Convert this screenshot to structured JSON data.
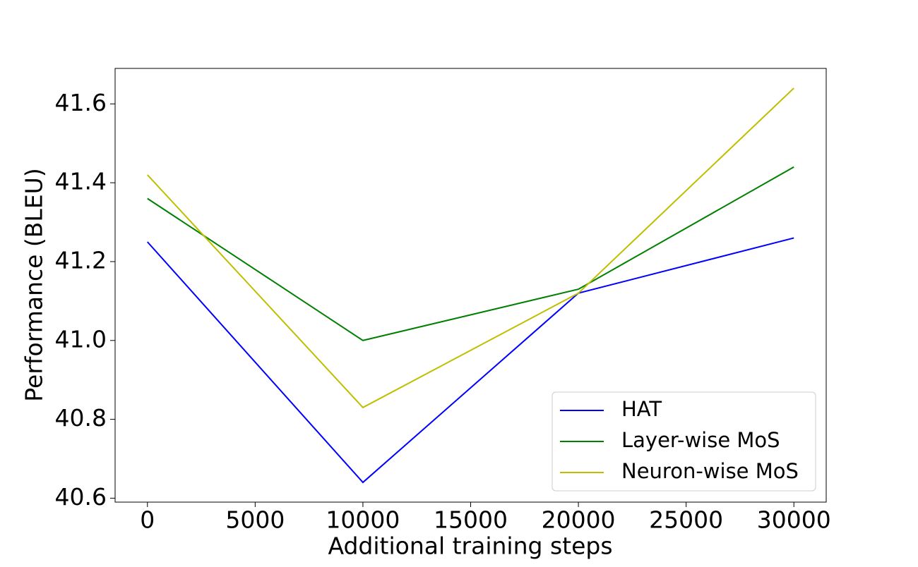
{
  "chart_data": {
    "type": "line",
    "x_label": "Additional training steps",
    "y_label": "Performance (BLEU)",
    "x": [
      0,
      10000,
      20000,
      30000
    ],
    "series": [
      {
        "name": "HAT",
        "color": "#0000ff",
        "values": [
          41.25,
          40.64,
          41.12,
          41.26
        ]
      },
      {
        "name": "Layer-wise MoS",
        "color": "#008000",
        "values": [
          41.36,
          41.0,
          41.13,
          41.44
        ]
      },
      {
        "name": "Neuron-wise MoS",
        "color": "#bfbf00",
        "values": [
          41.42,
          40.83,
          41.12,
          41.64
        ]
      }
    ],
    "xlim": [
      -1500,
      31500
    ],
    "ylim": [
      40.59,
      41.69
    ],
    "xticks": [
      0,
      5000,
      10000,
      15000,
      20000,
      25000,
      30000
    ],
    "yticks": [
      40.6,
      40.8,
      {
        "value": 41,
        "label": "41.0"
      },
      41.2,
      41.4,
      41.6
    ],
    "legend": "lower right"
  }
}
